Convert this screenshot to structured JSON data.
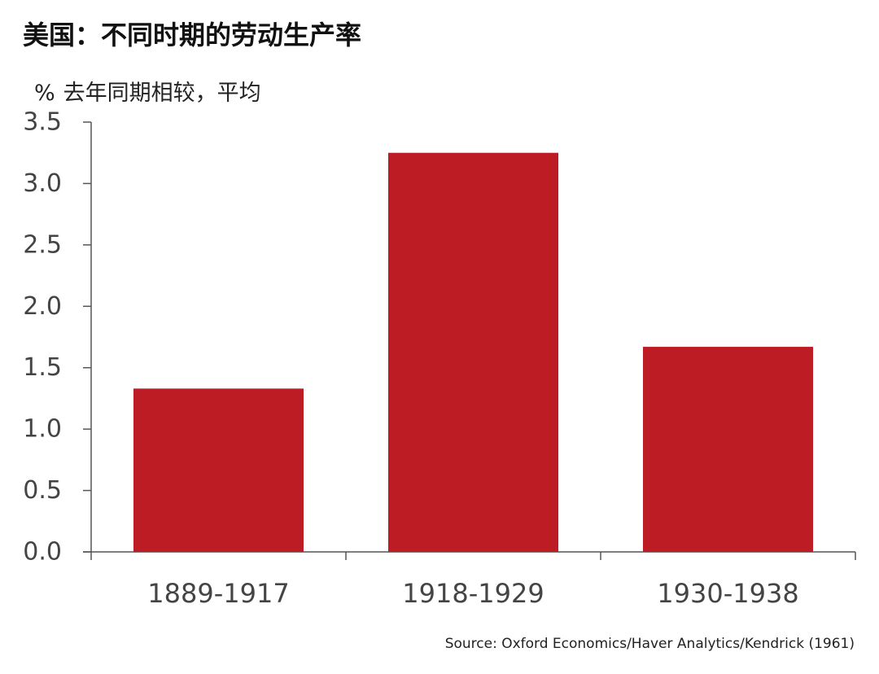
{
  "header": {
    "title": "美国：不同时期的劳动生产率",
    "unit": "%",
    "subtitle": "去年同期相较，平均"
  },
  "source": "Source: Oxford Economics/Haver Analytics/Kendrick (1961)",
  "colors": {
    "bar": "#bd1c24",
    "axis": "#555555",
    "text": "#444444"
  },
  "chart_data": {
    "type": "bar",
    "title": "美国：不同时期的劳动生产率",
    "ylabel": "% 去年同期相较，平均",
    "xlabel": "",
    "categories": [
      "1889-1917",
      "1918-1929",
      "1930-1938"
    ],
    "values": [
      1.33,
      3.25,
      1.67
    ],
    "ylim": [
      0,
      3.5
    ],
    "yticks": [
      0.0,
      0.5,
      1.0,
      1.5,
      2.0,
      2.5,
      3.0,
      3.5
    ],
    "ytick_labels": [
      "0.0",
      "0.5",
      "1.0",
      "1.5",
      "2.0",
      "2.5",
      "3.0",
      "3.5"
    ],
    "grid": false,
    "legend": "none"
  }
}
